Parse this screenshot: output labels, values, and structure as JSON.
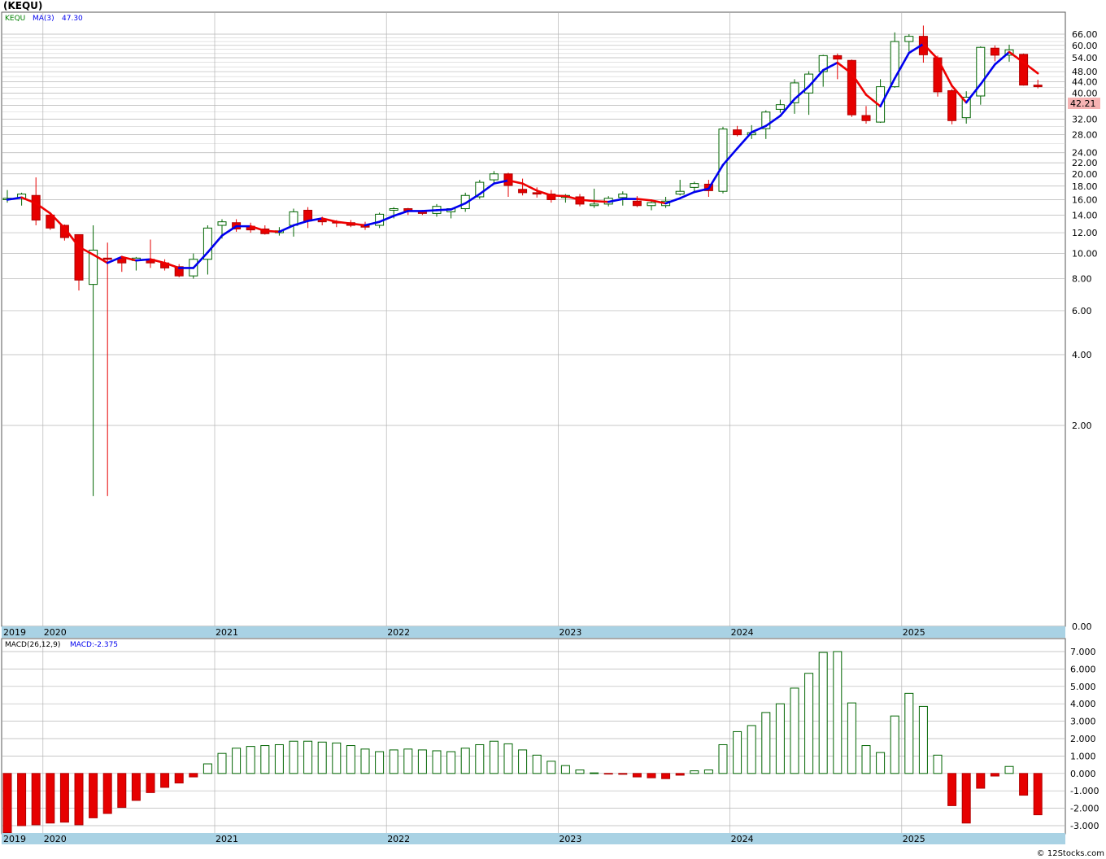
{
  "title": "(KEQU)",
  "credit": "© 12Stocks.com",
  "colors": {
    "up": "#006400",
    "down": "#e60000",
    "ma_up": "#0000ee",
    "ma_down": "#ee0000",
    "axis_band": "#a9d2e4",
    "grid": "#aaaaaa",
    "last_price_bg": "#f6b3b3"
  },
  "chart_data": [
    {
      "type": "candlestick",
      "symbol": "KEQU",
      "period": "monthly",
      "legend": {
        "symbol": "KEQU",
        "ma_label": "MA(3)",
        "ma_value": "47.30"
      },
      "y_scale": "log",
      "ylim": [
        0.0,
        70
      ],
      "y_ticks": [
        "66.00",
        "60.00",
        "54.00",
        "48.00",
        "44.00",
        "40.00",
        "36.00",
        "32.00",
        "28.00",
        "24.00",
        "22.00",
        "20.00",
        "18.00",
        "16.00",
        "14.00",
        "12.00",
        "10.00",
        "8.00",
        "6.00",
        "4.00",
        "2.00",
        "0.00"
      ],
      "x_labels": [
        "2019",
        "2020",
        "2021",
        "2022",
        "2023",
        "2024",
        "2025"
      ],
      "last_price": "42.21",
      "candles": [
        {
          "o": 16,
          "h": 17.4,
          "l": 15.6,
          "c": 16.2
        },
        {
          "o": 16.2,
          "h": 17,
          "l": 15.2,
          "c": 16.8
        },
        {
          "o": 16.6,
          "h": 19.4,
          "l": 12.8,
          "c": 13.4
        },
        {
          "o": 14,
          "h": 14.2,
          "l": 12.3,
          "c": 12.5
        },
        {
          "o": 12.8,
          "h": 12.9,
          "l": 11.2,
          "c": 11.5
        },
        {
          "o": 11.8,
          "h": 11.8,
          "l": 7.2,
          "c": 7.9
        },
        {
          "o": 7.6,
          "h": 12.8,
          "l": 0.9,
          "c": 10.3
        },
        {
          "o": 9.6,
          "h": 11,
          "l": 0.9,
          "c": 9.5
        },
        {
          "o": 9.6,
          "h": 9.8,
          "l": 8.5,
          "c": 9.2
        },
        {
          "o": 9.4,
          "h": 9.7,
          "l": 8.6,
          "c": 9.6
        },
        {
          "o": 9.5,
          "h": 11.3,
          "l": 8.8,
          "c": 9.2
        },
        {
          "o": 9.2,
          "h": 9.5,
          "l": 8.6,
          "c": 8.8
        },
        {
          "o": 8.9,
          "h": 9.1,
          "l": 8.1,
          "c": 8.2
        },
        {
          "o": 8.2,
          "h": 10,
          "l": 8,
          "c": 9.5
        },
        {
          "o": 9.5,
          "h": 12.8,
          "l": 8.3,
          "c": 12.5
        },
        {
          "o": 12.8,
          "h": 13.5,
          "l": 11.4,
          "c": 13.2
        },
        {
          "o": 13.1,
          "h": 13.5,
          "l": 12.1,
          "c": 12.4
        },
        {
          "o": 12.7,
          "h": 13.1,
          "l": 12,
          "c": 12.3
        },
        {
          "o": 12.4,
          "h": 12.8,
          "l": 11.8,
          "c": 11.9
        },
        {
          "o": 12,
          "h": 12.6,
          "l": 11.7,
          "c": 12.2
        },
        {
          "o": 12.8,
          "h": 14.8,
          "l": 11.6,
          "c": 14.4
        },
        {
          "o": 14.6,
          "h": 15,
          "l": 12.5,
          "c": 13.3
        },
        {
          "o": 13.5,
          "h": 13.8,
          "l": 12.8,
          "c": 13.2
        },
        {
          "o": 13.2,
          "h": 13.4,
          "l": 12.6,
          "c": 13.1
        },
        {
          "o": 13.1,
          "h": 13.4,
          "l": 12.6,
          "c": 12.8
        },
        {
          "o": 12.9,
          "h": 13.2,
          "l": 12.3,
          "c": 12.6
        },
        {
          "o": 12.8,
          "h": 14.3,
          "l": 12.5,
          "c": 14.1
        },
        {
          "o": 14.6,
          "h": 15,
          "l": 13.6,
          "c": 14.8
        },
        {
          "o": 14.8,
          "h": 14.9,
          "l": 14,
          "c": 14.5
        },
        {
          "o": 14.5,
          "h": 14.6,
          "l": 14,
          "c": 14.2
        },
        {
          "o": 14.2,
          "h": 15.4,
          "l": 13.8,
          "c": 15.1
        },
        {
          "o": 14.4,
          "h": 14.8,
          "l": 13.6,
          "c": 14.8
        },
        {
          "o": 14.8,
          "h": 17,
          "l": 14.4,
          "c": 16.6
        },
        {
          "o": 16.4,
          "h": 19,
          "l": 16.1,
          "c": 18.6
        },
        {
          "o": 19,
          "h": 20.5,
          "l": 18.4,
          "c": 20
        },
        {
          "o": 20,
          "h": 20.2,
          "l": 16.4,
          "c": 18.1
        },
        {
          "o": 17.5,
          "h": 19.2,
          "l": 16.6,
          "c": 17
        },
        {
          "o": 17,
          "h": 17.8,
          "l": 16.3,
          "c": 16.8
        },
        {
          "o": 16.8,
          "h": 17.4,
          "l": 15.6,
          "c": 16
        },
        {
          "o": 16.3,
          "h": 16.8,
          "l": 15.6,
          "c": 16.6
        },
        {
          "o": 16.4,
          "h": 16.8,
          "l": 15.1,
          "c": 15.4
        },
        {
          "o": 15.2,
          "h": 17.6,
          "l": 14.9,
          "c": 15.4
        },
        {
          "o": 15.4,
          "h": 16.5,
          "l": 15.1,
          "c": 16.2
        },
        {
          "o": 16.3,
          "h": 17.2,
          "l": 15.2,
          "c": 16.8
        },
        {
          "o": 15.8,
          "h": 16.5,
          "l": 15,
          "c": 15.2
        },
        {
          "o": 15.2,
          "h": 15.8,
          "l": 14.6,
          "c": 15.6
        },
        {
          "o": 15.2,
          "h": 16.4,
          "l": 14.9,
          "c": 15.8
        },
        {
          "o": 16.8,
          "h": 19,
          "l": 16.6,
          "c": 17.2
        },
        {
          "o": 17.8,
          "h": 18.7,
          "l": 17.2,
          "c": 18.4
        },
        {
          "o": 18.3,
          "h": 19,
          "l": 16.4,
          "c": 17.3
        },
        {
          "o": 17.2,
          "h": 30,
          "l": 16.9,
          "c": 29.4
        },
        {
          "o": 29.2,
          "h": 30.2,
          "l": 27.6,
          "c": 28
        },
        {
          "o": 28,
          "h": 30.4,
          "l": 27,
          "c": 28.5
        },
        {
          "o": 29.5,
          "h": 34.5,
          "l": 27,
          "c": 34
        },
        {
          "o": 34.8,
          "h": 37.8,
          "l": 33.8,
          "c": 36.2
        },
        {
          "o": 36.8,
          "h": 45,
          "l": 33.5,
          "c": 43.6
        },
        {
          "o": 40,
          "h": 48.2,
          "l": 33.2,
          "c": 47
        },
        {
          "o": 48,
          "h": 55.4,
          "l": 42.2,
          "c": 55
        },
        {
          "o": 55,
          "h": 56,
          "l": 45,
          "c": 53.4
        },
        {
          "o": 52.8,
          "h": 53.2,
          "l": 32.6,
          "c": 33.2
        },
        {
          "o": 33,
          "h": 35.8,
          "l": 30.8,
          "c": 31.6
        },
        {
          "o": 31.2,
          "h": 45,
          "l": 31,
          "c": 42.2
        },
        {
          "o": 42.2,
          "h": 67,
          "l": 41.8,
          "c": 62
        },
        {
          "o": 62,
          "h": 66,
          "l": 57,
          "c": 64.8
        },
        {
          "o": 64.8,
          "h": 71,
          "l": 51.8,
          "c": 55.4
        },
        {
          "o": 54,
          "h": 55,
          "l": 38.8,
          "c": 40.4
        },
        {
          "o": 40.8,
          "h": 41.4,
          "l": 30.6,
          "c": 31.6
        },
        {
          "o": 32.4,
          "h": 40.6,
          "l": 30.8,
          "c": 38.6
        },
        {
          "o": 39,
          "h": 59.5,
          "l": 36.2,
          "c": 59
        },
        {
          "o": 58.6,
          "h": 60,
          "l": 52.4,
          "c": 55.2
        },
        {
          "o": 55.2,
          "h": 60.4,
          "l": 52.2,
          "c": 57.8
        },
        {
          "o": 55.6,
          "h": 56,
          "l": 42.6,
          "c": 42.8
        },
        {
          "o": 42.8,
          "h": 44.8,
          "l": 41.6,
          "c": 42.21
        }
      ],
      "ma3": [
        16,
        16.3,
        15.5,
        14.2,
        12.5,
        10.6,
        9.9,
        9.2,
        9.7,
        9.4,
        9.5,
        9.2,
        8.8,
        8.8,
        10.1,
        11.7,
        12.7,
        12.7,
        12.2,
        12.1,
        12.8,
        13.3,
        13.6,
        13.2,
        13.0,
        12.8,
        13.2,
        13.9,
        14.5,
        14.5,
        14.6,
        14.7,
        15.5,
        16.8,
        18.4,
        18.9,
        18.4,
        17.3,
        16.6,
        16.5,
        16.0,
        15.8,
        15.7,
        16.1,
        16.1,
        15.9,
        15.5,
        16.2,
        17.1,
        17.6,
        21.6,
        24.9,
        28.6,
        30.2,
        32.9,
        38.0,
        42.3,
        48.6,
        51.8,
        47.2,
        39.4,
        35.7,
        45.3,
        56.3,
        60.7,
        53.5,
        42.5,
        36.9,
        43.1,
        51.0,
        56.7,
        51.9,
        47.3
      ],
      "macd": {
        "label": "MACD(26,12,9)",
        "value_label": "MACD:-2.375",
        "ylim": [
          -3.5,
          7.5
        ],
        "y_ticks": [
          "7.000",
          "6.000",
          "5.000",
          "4.000",
          "3.000",
          "2.000",
          "1.000",
          "0.000",
          "-1.000",
          "-2.000",
          "-3.000"
        ],
        "values": [
          -3.4,
          -3.0,
          -2.95,
          -2.85,
          -2.8,
          -2.95,
          -2.55,
          -2.3,
          -1.95,
          -1.55,
          -1.1,
          -0.8,
          -0.55,
          -0.2,
          0.55,
          1.15,
          1.45,
          1.55,
          1.6,
          1.65,
          1.85,
          1.85,
          1.8,
          1.75,
          1.6,
          1.4,
          1.25,
          1.35,
          1.4,
          1.35,
          1.3,
          1.25,
          1.45,
          1.65,
          1.85,
          1.7,
          1.35,
          1.05,
          0.7,
          0.45,
          0.2,
          0.03,
          -0.02,
          -0.05,
          -0.2,
          -0.25,
          -0.3,
          -0.1,
          0.15,
          0.2,
          1.65,
          2.4,
          2.75,
          3.5,
          4.0,
          4.9,
          5.75,
          6.95,
          7.0,
          4.05,
          1.6,
          1.2,
          3.3,
          4.6,
          3.85,
          1.05,
          -1.85,
          -2.85,
          -0.85,
          -0.15,
          0.4,
          -1.25,
          -2.375
        ]
      }
    }
  ]
}
